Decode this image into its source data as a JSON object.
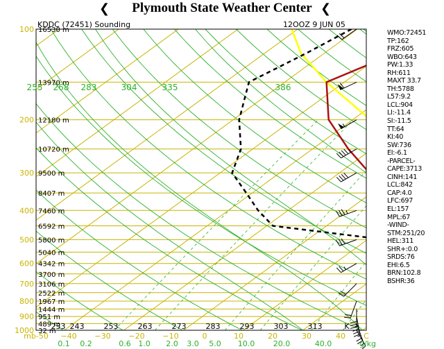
{
  "header": {
    "title": "Plymouth State Weather Center",
    "station": "KDDC (72451) Sounding",
    "valid": "12OOZ  9 JUN 05"
  },
  "colors": {
    "frame": "#000000",
    "isobar": "#c8b400",
    "isotherm": "#c8b400",
    "dry_adiabat": "#2bb02b",
    "moist_adiabat": "#2bb02b",
    "mixing_ratio": "#2bb02b",
    "temperature": "#aa1111",
    "dewpoint": "#000000",
    "parcel": "#ffff00"
  },
  "pressure_axis": {
    "labels": [
      "100",
      "200",
      "300",
      "400",
      "500",
      "600",
      "700",
      "800",
      "900",
      "1000"
    ]
  },
  "height_labels": [
    {
      "p": 100,
      "text": "16530 m"
    },
    {
      "p": 150,
      "text": "13970 m"
    },
    {
      "p": 200,
      "text": "12180 m"
    },
    {
      "p": 250,
      "text": "10720 m"
    },
    {
      "p": 300,
      "text": "9500 m"
    },
    {
      "p": 350,
      "text": "8407 m"
    },
    {
      "p": 400,
      "text": "7460 m"
    },
    {
      "p": 450,
      "text": "6592 m"
    },
    {
      "p": 500,
      "text": "5800 m"
    },
    {
      "p": 550,
      "text": "5040 m"
    },
    {
      "p": 600,
      "text": "4342 m"
    },
    {
      "p": 650,
      "text": "3700 m"
    },
    {
      "p": 700,
      "text": "3106 m"
    },
    {
      "p": 750,
      "text": "2522 m"
    },
    {
      "p": 800,
      "text": "1967 m"
    },
    {
      "p": 850,
      "text": "1444 m"
    },
    {
      "p": 900,
      "text": "951 m"
    },
    {
      "p": 950,
      "text": "489 m"
    },
    {
      "p": 1000,
      "text": "32 m"
    }
  ],
  "kelvin_labels": [
    "233",
    "243",
    "253",
    "263",
    "273",
    "283",
    "293",
    "303",
    "313",
    "K"
  ],
  "celsius_labels": [
    "mb-50",
    "−40",
    "−30",
    "−20",
    "−10",
    "0",
    "10",
    "20",
    "30",
    "40",
    "C"
  ],
  "mixing_labels": [
    "0.1",
    "0.2",
    "0.6",
    "1.0",
    "2.0",
    "3.0",
    "5.0",
    "10.0",
    "20.0",
    "40.0",
    "g/kg"
  ],
  "theta_labels": [
    "255",
    "268",
    "283",
    "304",
    "335",
    "386"
  ],
  "indices": [
    "WMO:72451",
    "TP:162",
    "FRZ:605",
    "WBO:643",
    "PW:1.33",
    "RH:611",
    "MAXT 33.7",
    "TH:5788",
    "L57:9.2",
    "LCL:904",
    "LI:-11.4",
    "SI:-11.5",
    "TT:64",
    "KI:40",
    "SW:736",
    "EI:-6.1",
    "-PARCEL-",
    "CAPE:3713",
    "CINH:141",
    "LCL:842",
    "CAP:4.0",
    "LFC:697",
    "EL:157",
    "MPL:67",
    "-WIND-",
    "STM:251/20",
    "HEL:311",
    "SHR+:0.0",
    "SRDS:76",
    "EHI:6.5",
    "BRN:102.8",
    "BSHR:36"
  ],
  "chart_data": {
    "type": "skew-t",
    "pressure_range_mb": [
      100,
      1000
    ],
    "temperature_range_C": [
      -50,
      40
    ],
    "series": [
      {
        "name": "temperature",
        "points": [
          [
            1000,
            28
          ],
          [
            950,
            26
          ],
          [
            900,
            27
          ],
          [
            850,
            28
          ],
          [
            800,
            24
          ],
          [
            750,
            20
          ],
          [
            700,
            15
          ],
          [
            650,
            10
          ],
          [
            600,
            5
          ],
          [
            550,
            -1
          ],
          [
            500,
            -7
          ],
          [
            450,
            -13
          ],
          [
            400,
            -19
          ],
          [
            350,
            -27
          ],
          [
            300,
            -35
          ],
          [
            250,
            -44
          ],
          [
            200,
            -54
          ],
          [
            150,
            -63
          ],
          [
            120,
            -58
          ],
          [
            100,
            -55
          ]
        ]
      },
      {
        "name": "dewpoint",
        "points": [
          [
            1000,
            25
          ],
          [
            950,
            20
          ],
          [
            900,
            21
          ],
          [
            850,
            19
          ],
          [
            800,
            12
          ],
          [
            750,
            8
          ],
          [
            700,
            4
          ],
          [
            650,
            -1
          ],
          [
            600,
            -5
          ],
          [
            550,
            -10
          ],
          [
            500,
            -17
          ],
          [
            450,
            -39
          ],
          [
            400,
            -45
          ],
          [
            350,
            -51
          ],
          [
            300,
            -58
          ],
          [
            250,
            -62
          ],
          [
            200,
            -69
          ],
          [
            150,
            -76
          ],
          [
            120,
            -73
          ],
          [
            100,
            -71
          ]
        ]
      },
      {
        "name": "parcel",
        "points": [
          [
            1000,
            28
          ],
          [
            900,
            24.5
          ],
          [
            850,
            24
          ],
          [
            800,
            22
          ],
          [
            700,
            16
          ],
          [
            600,
            9
          ],
          [
            500,
            1
          ],
          [
            400,
            -10
          ],
          [
            300,
            -25
          ],
          [
            250,
            -35
          ],
          [
            200,
            -47
          ],
          [
            150,
            -63
          ],
          [
            120,
            -74
          ],
          [
            100,
            -81
          ]
        ]
      }
    ],
    "wind_barbs": [
      {
        "p": 100,
        "dir": 235,
        "spd": 20
      },
      {
        "p": 150,
        "dir": 245,
        "spd": 60
      },
      {
        "p": 200,
        "dir": 240,
        "spd": 55
      },
      {
        "p": 250,
        "dir": 240,
        "spd": 45
      },
      {
        "p": 300,
        "dir": 240,
        "spd": 40
      },
      {
        "p": 400,
        "dir": 250,
        "spd": 35
      },
      {
        "p": 500,
        "dir": 250,
        "spd": 30
      },
      {
        "p": 600,
        "dir": 240,
        "spd": 25
      },
      {
        "p": 700,
        "dir": 225,
        "spd": 20
      },
      {
        "p": 800,
        "dir": 200,
        "spd": 20
      },
      {
        "p": 850,
        "dir": 180,
        "spd": 30
      },
      {
        "p": 900,
        "dir": 170,
        "spd": 35
      },
      {
        "p": 950,
        "dir": 160,
        "spd": 25
      },
      {
        "p": 1000,
        "dir": 150,
        "spd": 15
      }
    ]
  }
}
